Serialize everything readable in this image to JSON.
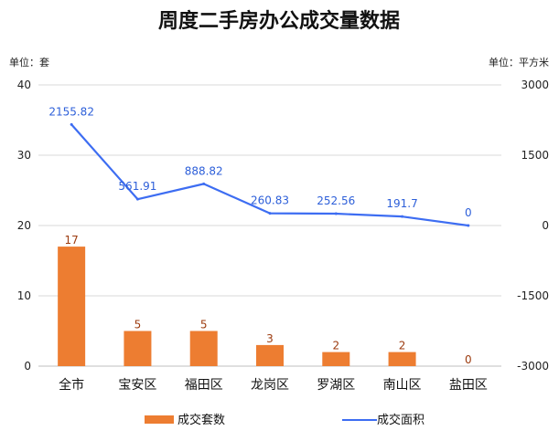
{
  "chart_data": {
    "type": "bar",
    "title": "周度二手房办公成交量数据",
    "left_axis_unit": "单位：套",
    "right_axis_unit": "单位：平方米",
    "categories": [
      "全市",
      "宝安区",
      "福田区",
      "龙岗区",
      "罗湖区",
      "南山区",
      "盐田区"
    ],
    "grid": true,
    "legend_position": "bottom",
    "left_axis": {
      "ylim": [
        0,
        40
      ],
      "ticks": [
        0,
        10,
        20,
        30,
        40
      ]
    },
    "right_axis": {
      "ylim": [
        -3000,
        3000
      ],
      "ticks": [
        -3000,
        -1500,
        0,
        1500,
        3000
      ]
    },
    "series": [
      {
        "name": "成交套数",
        "type": "bar",
        "axis": "left",
        "color": "#ed7d31",
        "values": [
          17,
          5,
          5,
          3,
          2,
          2,
          0
        ],
        "labels": [
          "17",
          "5",
          "5",
          "3",
          "2",
          "2",
          "0"
        ]
      },
      {
        "name": "成交面积",
        "type": "line",
        "axis": "right",
        "color": "#3d6df2",
        "values": [
          2155.82,
          561.91,
          888.82,
          260.83,
          252.56,
          191.7,
          0
        ],
        "labels": [
          "2155.82",
          "561.91",
          "888.82",
          "260.83",
          "252.56",
          "191.7",
          "0"
        ]
      }
    ]
  }
}
